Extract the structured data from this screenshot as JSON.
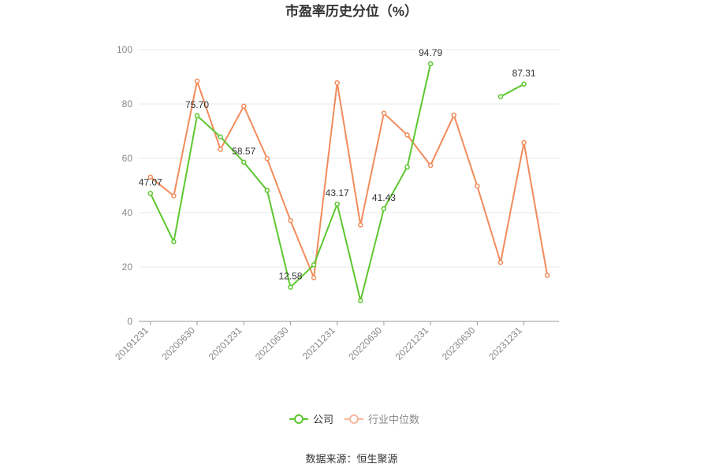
{
  "title": "市盈率历史分位（%）",
  "source": "数据来源：恒生聚源",
  "colors": {
    "company": "#5cc72e",
    "industry": "#f28b5b",
    "grid": "#e8e8e8",
    "axis": "#999999"
  },
  "chart_data": {
    "type": "line",
    "title": "市盈率历史分位（%）",
    "xlabel": "",
    "ylabel": "",
    "ylim": [
      0,
      100
    ],
    "yticks": [
      0,
      20,
      40,
      60,
      80,
      100
    ],
    "grid": true,
    "legend_position": "bottom",
    "x": [
      "20191231",
      "20200331",
      "20200630",
      "20200930",
      "20201231",
      "20210331",
      "20210630",
      "20210930",
      "20211231",
      "20220331",
      "20220630",
      "20220930",
      "20221231",
      "20230331",
      "20230630",
      "20230930",
      "20231231",
      "20240331"
    ],
    "x_tick_labels": [
      "20191231",
      "20200630",
      "20201231",
      "20210630",
      "20211231",
      "20220630",
      "20221231",
      "20230630",
      "20231231"
    ],
    "series": [
      {
        "name": "公司",
        "color": "#5cc72e",
        "values": [
          47.07,
          29.3,
          75.7,
          67.9,
          58.57,
          48.2,
          12.58,
          20.8,
          43.17,
          7.6,
          41.43,
          56.8,
          94.79,
          null,
          null,
          82.7,
          87.31,
          null
        ],
        "labels": {
          "0": "47.07",
          "2": "75.70",
          "4": "58.57",
          "6": "12.58",
          "8": "43.17",
          "10": "41.43",
          "12": "94.79",
          "16": "87.31"
        }
      },
      {
        "name": "行业中位数",
        "color": "#f28b5b",
        "values": [
          53.1,
          46.2,
          88.4,
          63.3,
          79.2,
          59.9,
          37.1,
          16.1,
          87.8,
          35.5,
          76.6,
          68.6,
          57.4,
          75.9,
          49.8,
          21.7,
          65.8,
          16.9
        ]
      }
    ]
  }
}
